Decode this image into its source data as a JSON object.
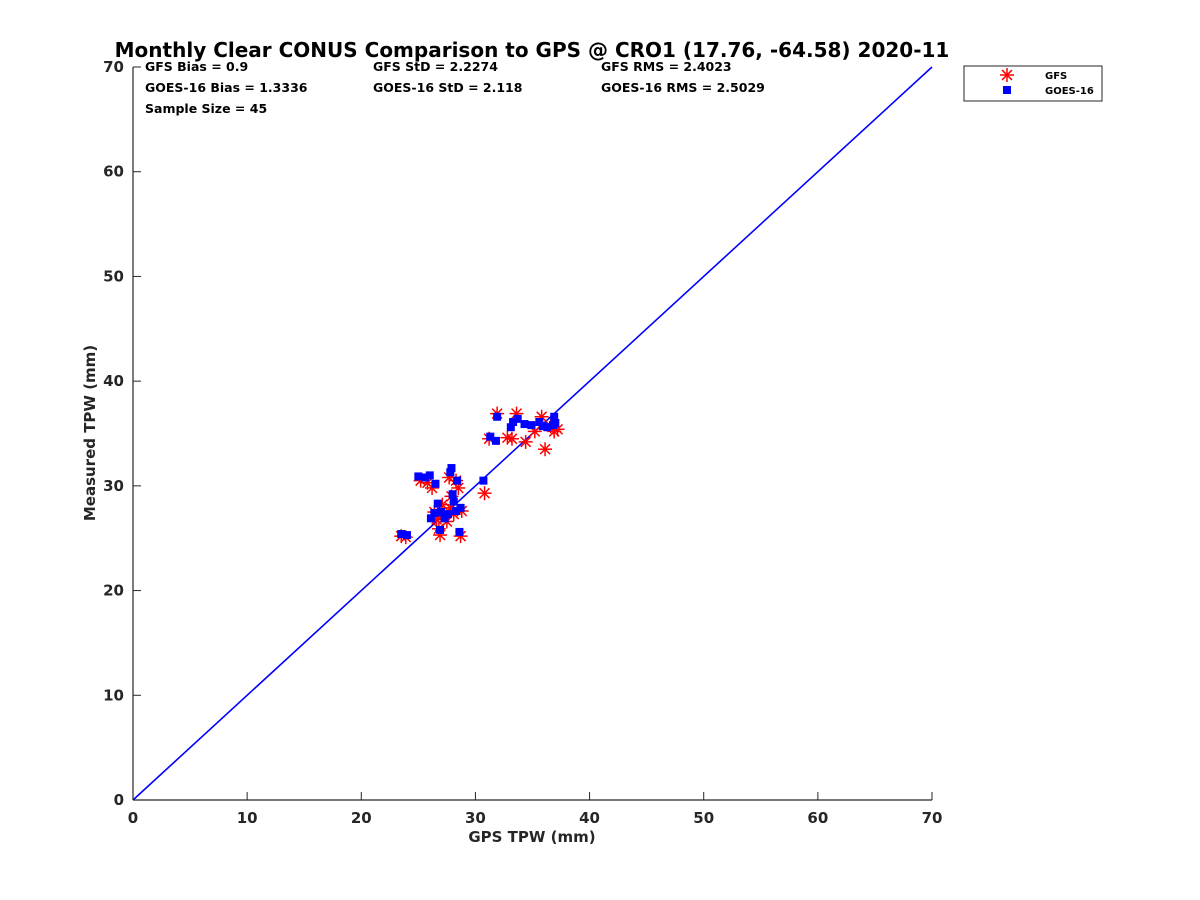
{
  "chart_data": {
    "type": "scatter",
    "title": "Monthly Clear CONUS Comparison to GPS @ CRO1 (17.76, -64.58) 2020-11",
    "xlabel": "GPS TPW (mm)",
    "ylabel": "Measured TPW (mm)",
    "xlim": [
      0,
      70
    ],
    "ylim": [
      0,
      70
    ],
    "xticks": [
      "0",
      "10",
      "20",
      "30",
      "40",
      "50",
      "60",
      "70"
    ],
    "yticks": [
      "0",
      "10",
      "20",
      "30",
      "40",
      "50",
      "60",
      "70"
    ],
    "grid": false,
    "legend_position": "outside top-right",
    "stats": {
      "gfs_bias": "GFS Bias = 0.9",
      "gfs_std": "GFS StD = 2.2274",
      "gfs_rms": "GFS RMS = 2.4023",
      "goes_bias": "GOES-16 Bias = 1.3336",
      "goes_std": "GOES-16 StD = 2.118",
      "goes_rms": "GOES-16 RMS = 2.5029",
      "sample_size": "Sample Size = 45"
    },
    "reference_line": {
      "name": "1:1",
      "x": [
        0,
        70
      ],
      "y": [
        0,
        70
      ],
      "color": "#0000ff"
    },
    "series": [
      {
        "name": "GFS",
        "marker": "asterisk",
        "color": "#ff0000",
        "points": [
          [
            23.5,
            25.2
          ],
          [
            23.9,
            25.1
          ],
          [
            25.2,
            30.5
          ],
          [
            25.8,
            30.3
          ],
          [
            26.2,
            29.8
          ],
          [
            26.4,
            27.5
          ],
          [
            26.6,
            26.8
          ],
          [
            26.8,
            25.9
          ],
          [
            26.9,
            25.3
          ],
          [
            27.1,
            28.2
          ],
          [
            27.2,
            27.2
          ],
          [
            27.5,
            26.6
          ],
          [
            27.7,
            30.8
          ],
          [
            27.8,
            27.9
          ],
          [
            27.9,
            29.0
          ],
          [
            28.1,
            27.3
          ],
          [
            28.3,
            30.5
          ],
          [
            28.5,
            29.8
          ],
          [
            28.7,
            25.2
          ],
          [
            28.8,
            27.6
          ],
          [
            30.8,
            29.3
          ],
          [
            31.2,
            34.5
          ],
          [
            31.9,
            36.9
          ],
          [
            32.8,
            34.6
          ],
          [
            33.2,
            34.5
          ],
          [
            33.6,
            36.9
          ],
          [
            34.4,
            34.2
          ],
          [
            35.2,
            35.2
          ],
          [
            35.8,
            36.6
          ],
          [
            36.1,
            33.5
          ],
          [
            36.6,
            35.7
          ],
          [
            36.9,
            35.2
          ],
          [
            37.2,
            35.4
          ]
        ]
      },
      {
        "name": "GOES-16",
        "marker": "square",
        "color": "#0000ff",
        "points": [
          [
            23.5,
            25.4
          ],
          [
            24.0,
            25.3
          ],
          [
            25.0,
            30.9
          ],
          [
            25.6,
            30.8
          ],
          [
            26.0,
            31.0
          ],
          [
            26.1,
            26.9
          ],
          [
            26.4,
            27.4
          ],
          [
            26.5,
            30.2
          ],
          [
            26.7,
            28.3
          ],
          [
            26.9,
            25.8
          ],
          [
            27.0,
            27.5
          ],
          [
            27.3,
            26.9
          ],
          [
            27.6,
            27.3
          ],
          [
            27.8,
            31.3
          ],
          [
            27.9,
            31.7
          ],
          [
            28.0,
            29.2
          ],
          [
            28.1,
            28.5
          ],
          [
            28.3,
            27.6
          ],
          [
            28.4,
            30.5
          ],
          [
            28.6,
            25.6
          ],
          [
            28.7,
            27.9
          ],
          [
            30.7,
            30.5
          ],
          [
            31.3,
            34.7
          ],
          [
            31.8,
            34.3
          ],
          [
            31.9,
            36.6
          ],
          [
            33.1,
            35.6
          ],
          [
            33.3,
            36.1
          ],
          [
            33.7,
            36.4
          ],
          [
            34.3,
            35.9
          ],
          [
            34.9,
            35.8
          ],
          [
            35.6,
            36.1
          ],
          [
            35.9,
            35.7
          ],
          [
            36.3,
            35.6
          ],
          [
            36.8,
            35.8
          ],
          [
            36.9,
            36.6
          ],
          [
            37.0,
            36.0
          ]
        ]
      }
    ]
  }
}
